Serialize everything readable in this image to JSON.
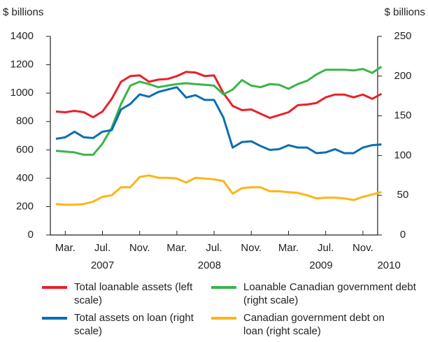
{
  "chart_data": {
    "type": "line",
    "y_label": "$ billions",
    "y2_label": "$ billions",
    "categories": [
      null,
      "Mar.",
      null,
      null,
      null,
      "Jul.",
      null,
      null,
      null,
      "Nov.",
      null,
      null,
      null,
      "Mar.",
      null,
      null,
      null,
      "Jul.",
      null,
      null,
      null,
      "Nov.",
      null,
      null,
      null,
      "Mar.",
      null,
      null,
      null,
      "Jul.",
      null,
      null,
      null,
      "Nov.",
      null,
      null
    ],
    "year_labels": [
      "2007",
      "2008",
      "2009",
      "2010"
    ],
    "ylim": [
      0,
      1400
    ],
    "yticks": [
      0,
      200,
      400,
      600,
      800,
      1000,
      1200,
      1400
    ],
    "y2lim": [
      0,
      250
    ],
    "y2ticks": [
      0,
      50,
      100,
      150,
      200,
      250
    ],
    "series": [
      {
        "name": "Total loanable assets (left scale)",
        "color": "#e8212a",
        "values": [
          870,
          865,
          875,
          865,
          830,
          870,
          960,
          1080,
          1120,
          1125,
          1080,
          1095,
          1100,
          1120,
          1150,
          1145,
          1120,
          1125,
          1000,
          910,
          880,
          885,
          855,
          825,
          845,
          865,
          915,
          920,
          930,
          970,
          990,
          990,
          970,
          990,
          960,
          995
        ]
      },
      {
        "name": "Loanable Canadian government debt (right scale)",
        "color": "#3ab54a",
        "axis": "y2",
        "values": [
          106,
          105,
          104,
          101,
          101,
          115,
          135,
          165,
          188,
          193,
          190,
          186,
          188,
          190,
          191,
          190,
          189,
          188,
          177,
          183,
          195,
          188,
          186,
          190,
          189,
          184,
          190,
          194,
          202,
          208,
          208,
          208,
          207,
          209,
          204,
          212
        ]
      },
      {
        "name": "Total assets on loan (right scale)",
        "color": "#0a6eb4",
        "axis": "y2",
        "values": [
          121,
          123,
          130,
          123,
          122,
          130,
          132,
          158,
          165,
          177,
          174,
          180,
          183,
          186,
          173,
          176,
          170,
          170,
          148,
          110,
          117,
          118,
          112,
          107,
          108,
          113,
          110,
          110,
          103,
          104,
          108,
          103,
          103,
          110,
          113,
          114
        ]
      },
      {
        "name": "Canadian government debt on loan (right scale)",
        "color": "#fdb515",
        "axis": "y2",
        "values": [
          39,
          38,
          38,
          39,
          42,
          48,
          50,
          60,
          60,
          73,
          75,
          72,
          72,
          71,
          66,
          72,
          71,
          70,
          68,
          52,
          59,
          60,
          60,
          55,
          55,
          54,
          53,
          50,
          46,
          47,
          47,
          46,
          44,
          48,
          51,
          54
        ]
      }
    ]
  }
}
